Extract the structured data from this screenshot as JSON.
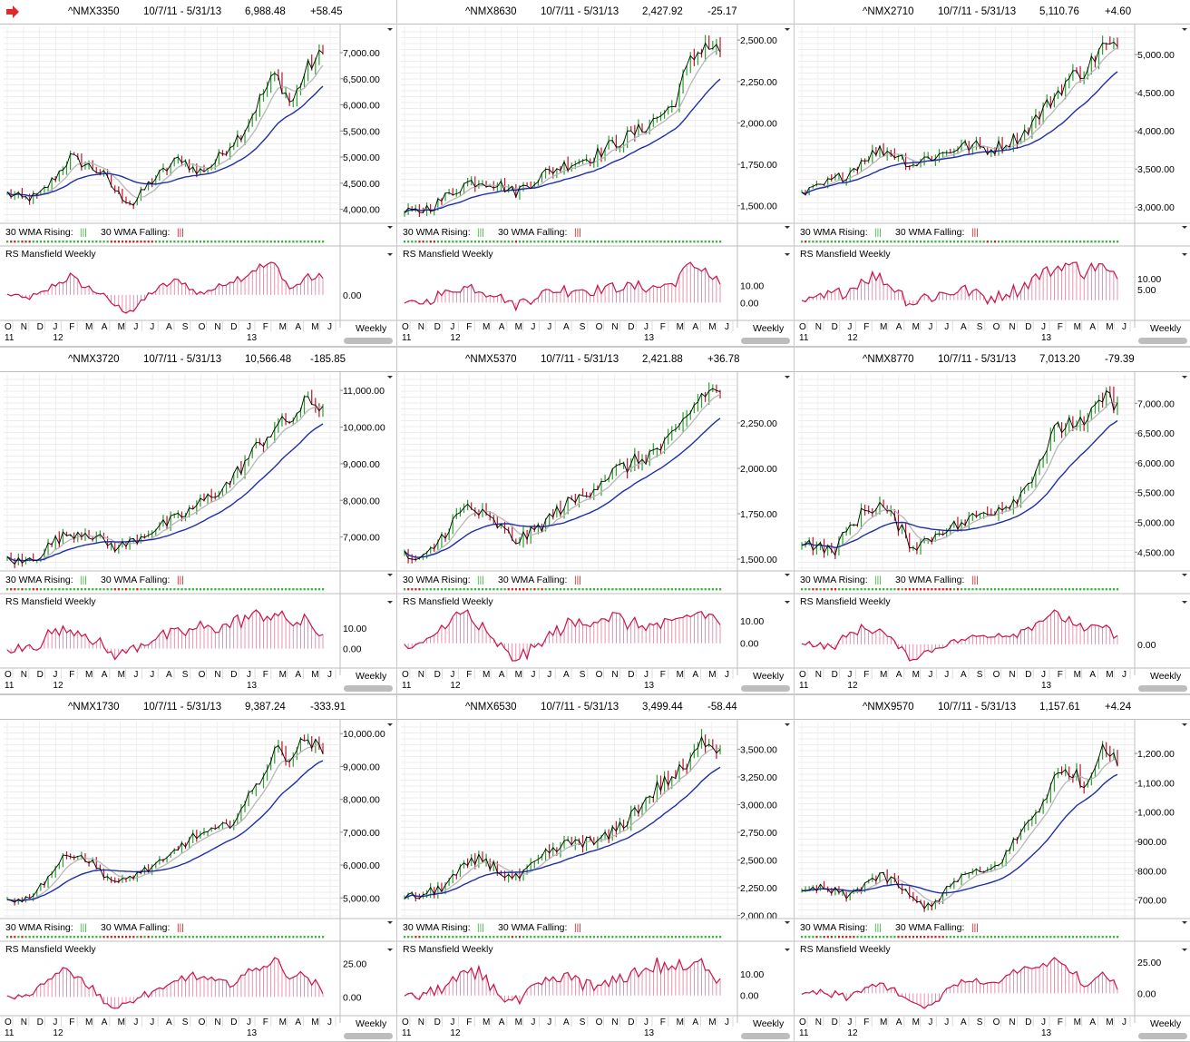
{
  "colors": {
    "price_up": "#2aa12a",
    "price_down": "#c0142c",
    "price_line": "#000000",
    "wma10": "#b8b8b8",
    "wma30": "#1e2fa8",
    "rs_line": "#c8154a",
    "rs_bar": "#c8154a",
    "rising_dot": "#38b838",
    "falling_dot": "#d42020",
    "header_arrow": "#e02a2a"
  },
  "labels": {
    "wma_rising": "30 WMA Rising:",
    "wma_falling": "30 WMA Falling:",
    "rs": "RS Mansfield Weekly",
    "period": "Weekly"
  },
  "x_axis": {
    "months": [
      "O",
      "N",
      "D",
      "J",
      "F",
      "M",
      "A",
      "M",
      "J",
      "J",
      "A",
      "S",
      "O",
      "N",
      "D",
      "J",
      "F",
      "M",
      "A",
      "M",
      "J"
    ],
    "years": [
      {
        "label": "11",
        "index": 0
      },
      {
        "label": "12",
        "index": 3
      },
      {
        "label": "13",
        "index": 15
      }
    ]
  },
  "panels": [
    {
      "symbol": "^NMX3350",
      "range": "10/7/11 - 5/31/13",
      "last": "6,988.48",
      "change": "+58.45",
      "has_arrow": true,
      "price_ticks": [
        "7,000.00",
        "6,500.00",
        "6,000.00",
        "5,500.00",
        "5,000.00",
        "4,500.00",
        "4,000.00"
      ],
      "rs_ticks": [
        "0.00"
      ]
    },
    {
      "symbol": "^NMX8630",
      "range": "10/7/11 - 5/31/13",
      "last": "2,427.92",
      "change": "-25.17",
      "has_arrow": false,
      "price_ticks": [
        "2,500.00",
        "2,250.00",
        "2,000.00",
        "1,750.00",
        "1,500.00"
      ],
      "rs_ticks": [
        "10.00",
        "0.00"
      ]
    },
    {
      "symbol": "^NMX2710",
      "range": "10/7/11 - 5/31/13",
      "last": "5,110.76",
      "change": "+4.60",
      "has_arrow": false,
      "price_ticks": [
        "5,000.00",
        "4,500.00",
        "4,000.00",
        "3,500.00",
        "3,000.00"
      ],
      "rs_ticks": [
        "10.00",
        "5.00"
      ]
    },
    {
      "symbol": "^NMX3720",
      "range": "10/7/11 - 5/31/13",
      "last": "10,566.48",
      "change": "-185.85",
      "has_arrow": false,
      "price_ticks": [
        "11,000.00",
        "10,000.00",
        "9,000.00",
        "8,000.00",
        "7,000.00"
      ],
      "rs_ticks": [
        "10.00",
        "0.00"
      ]
    },
    {
      "symbol": "^NMX5370",
      "range": "10/7/11 - 5/31/13",
      "last": "2,421.88",
      "change": "+36.78",
      "has_arrow": false,
      "price_ticks": [
        "2,250.00",
        "2,000.00",
        "1,750.00",
        "1,500.00"
      ],
      "rs_ticks": [
        "10.00",
        "0.00"
      ]
    },
    {
      "symbol": "^NMX8770",
      "range": "10/7/11 - 5/31/13",
      "last": "7,013.20",
      "change": "-79.39",
      "has_arrow": false,
      "price_ticks": [
        "7,000.00",
        "6,500.00",
        "6,000.00",
        "5,500.00",
        "5,000.00",
        "4,500.00"
      ],
      "rs_ticks": [
        "0.00"
      ]
    },
    {
      "symbol": "^NMX1730",
      "range": "10/7/11 - 5/31/13",
      "last": "9,387.24",
      "change": "-333.91",
      "has_arrow": false,
      "price_ticks": [
        "10,000.00",
        "9,000.00",
        "8,000.00",
        "7,000.00",
        "6,000.00",
        "5,000.00"
      ],
      "rs_ticks": [
        "25.00",
        "0.00"
      ]
    },
    {
      "symbol": "^NMX6530",
      "range": "10/7/11 - 5/31/13",
      "last": "3,499.44",
      "change": "-58.44",
      "has_arrow": false,
      "price_ticks": [
        "3,500.00",
        "3,250.00",
        "3,000.00",
        "2,750.00",
        "2,500.00",
        "2,250.00",
        "2,000.00"
      ],
      "rs_ticks": [
        "10.00",
        "0.00"
      ]
    },
    {
      "symbol": "^NMX9570",
      "range": "10/7/11 - 5/31/13",
      "last": "1,157.61",
      "change": "+4.24",
      "has_arrow": false,
      "price_ticks": [
        "1,200.00",
        "1,100.00",
        "1,000.00",
        "900.00",
        "800.00",
        "700.00"
      ],
      "rs_ticks": [
        "25.00",
        "0.00"
      ]
    }
  ],
  "chart_data": [
    {
      "type": "line",
      "title": "^NMX3350",
      "x_range": [
        "10/7/11",
        "5/31/13"
      ],
      "ylim": [
        3750,
        7400
      ],
      "series": [
        {
          "values": [
            4300,
            4200,
            4250,
            4600,
            5000,
            4850,
            4700,
            4300,
            4100,
            4500,
            4750,
            5000,
            4700,
            4850,
            5200,
            5500,
            6100,
            6600,
            6000,
            6700,
            6990
          ]
        }
      ]
    },
    {
      "type": "line",
      "title": "^NMX8630",
      "x_range": [
        "10/7/11",
        "5/31/13"
      ],
      "ylim": [
        1400,
        2550
      ],
      "series": [
        {
          "values": [
            1450,
            1470,
            1510,
            1580,
            1640,
            1650,
            1630,
            1580,
            1640,
            1700,
            1740,
            1770,
            1800,
            1860,
            1910,
            1960,
            2030,
            2100,
            2350,
            2480,
            2428
          ]
        }
      ]
    },
    {
      "type": "line",
      "title": "^NMX2710",
      "x_range": [
        "10/7/11",
        "5/31/13"
      ],
      "ylim": [
        2800,
        5300
      ],
      "series": [
        {
          "values": [
            3150,
            3250,
            3350,
            3450,
            3650,
            3750,
            3700,
            3550,
            3650,
            3700,
            3800,
            3800,
            3750,
            3850,
            3950,
            4200,
            4450,
            4700,
            4800,
            5100,
            5110
          ]
        }
      ]
    },
    {
      "type": "line",
      "title": "^NMX3720",
      "x_range": [
        "10/7/11",
        "5/31/13"
      ],
      "ylim": [
        6100,
        11300
      ],
      "series": [
        {
          "values": [
            6400,
            6300,
            6500,
            6900,
            7100,
            7150,
            6900,
            6700,
            6900,
            7150,
            7350,
            7550,
            7850,
            8150,
            8450,
            9000,
            9550,
            10000,
            10200,
            10700,
            10566
          ]
        }
      ]
    },
    {
      "type": "line",
      "title": "^NMX5370",
      "x_range": [
        "10/7/11",
        "5/31/13"
      ],
      "ylim": [
        1440,
        2490
      ],
      "series": [
        {
          "values": [
            1520,
            1480,
            1580,
            1700,
            1790,
            1740,
            1680,
            1600,
            1640,
            1710,
            1790,
            1830,
            1900,
            1970,
            2010,
            2050,
            2100,
            2160,
            2300,
            2420,
            2422
          ]
        }
      ]
    },
    {
      "type": "line",
      "title": "^NMX8770",
      "x_range": [
        "10/7/11",
        "5/31/13"
      ],
      "ylim": [
        4200,
        7400
      ],
      "series": [
        {
          "values": [
            4700,
            4600,
            4500,
            4900,
            5200,
            5300,
            5000,
            4600,
            4700,
            4900,
            4950,
            5100,
            5200,
            5300,
            5500,
            6000,
            6500,
            6700,
            6600,
            7100,
            7013
          ]
        }
      ]
    },
    {
      "type": "line",
      "title": "^NMX1730",
      "x_range": [
        "10/7/11",
        "5/31/13"
      ],
      "ylim": [
        4400,
        10200
      ],
      "series": [
        {
          "values": [
            5000,
            4900,
            5300,
            5900,
            6400,
            6200,
            5800,
            5400,
            5700,
            5900,
            6100,
            6600,
            6900,
            7000,
            7200,
            7800,
            8600,
            9500,
            9300,
            9900,
            9387
          ]
        }
      ]
    },
    {
      "type": "line",
      "title": "^NMX6530",
      "x_range": [
        "10/7/11",
        "5/31/13"
      ],
      "ylim": [
        1980,
        3700
      ],
      "series": [
        {
          "values": [
            2150,
            2180,
            2220,
            2330,
            2450,
            2520,
            2400,
            2320,
            2420,
            2550,
            2620,
            2680,
            2650,
            2720,
            2850,
            3000,
            3150,
            3250,
            3350,
            3600,
            3499
          ]
        }
      ]
    },
    {
      "type": "line",
      "title": "^NMX9570",
      "x_range": [
        "10/7/11",
        "5/31/13"
      ],
      "ylim": [
        640,
        1290
      ],
      "series": [
        {
          "values": [
            720,
            740,
            730,
            710,
            760,
            780,
            760,
            700,
            680,
            720,
            780,
            790,
            800,
            860,
            940,
            1010,
            1110,
            1150,
            1080,
            1240,
            1158
          ]
        }
      ]
    }
  ]
}
